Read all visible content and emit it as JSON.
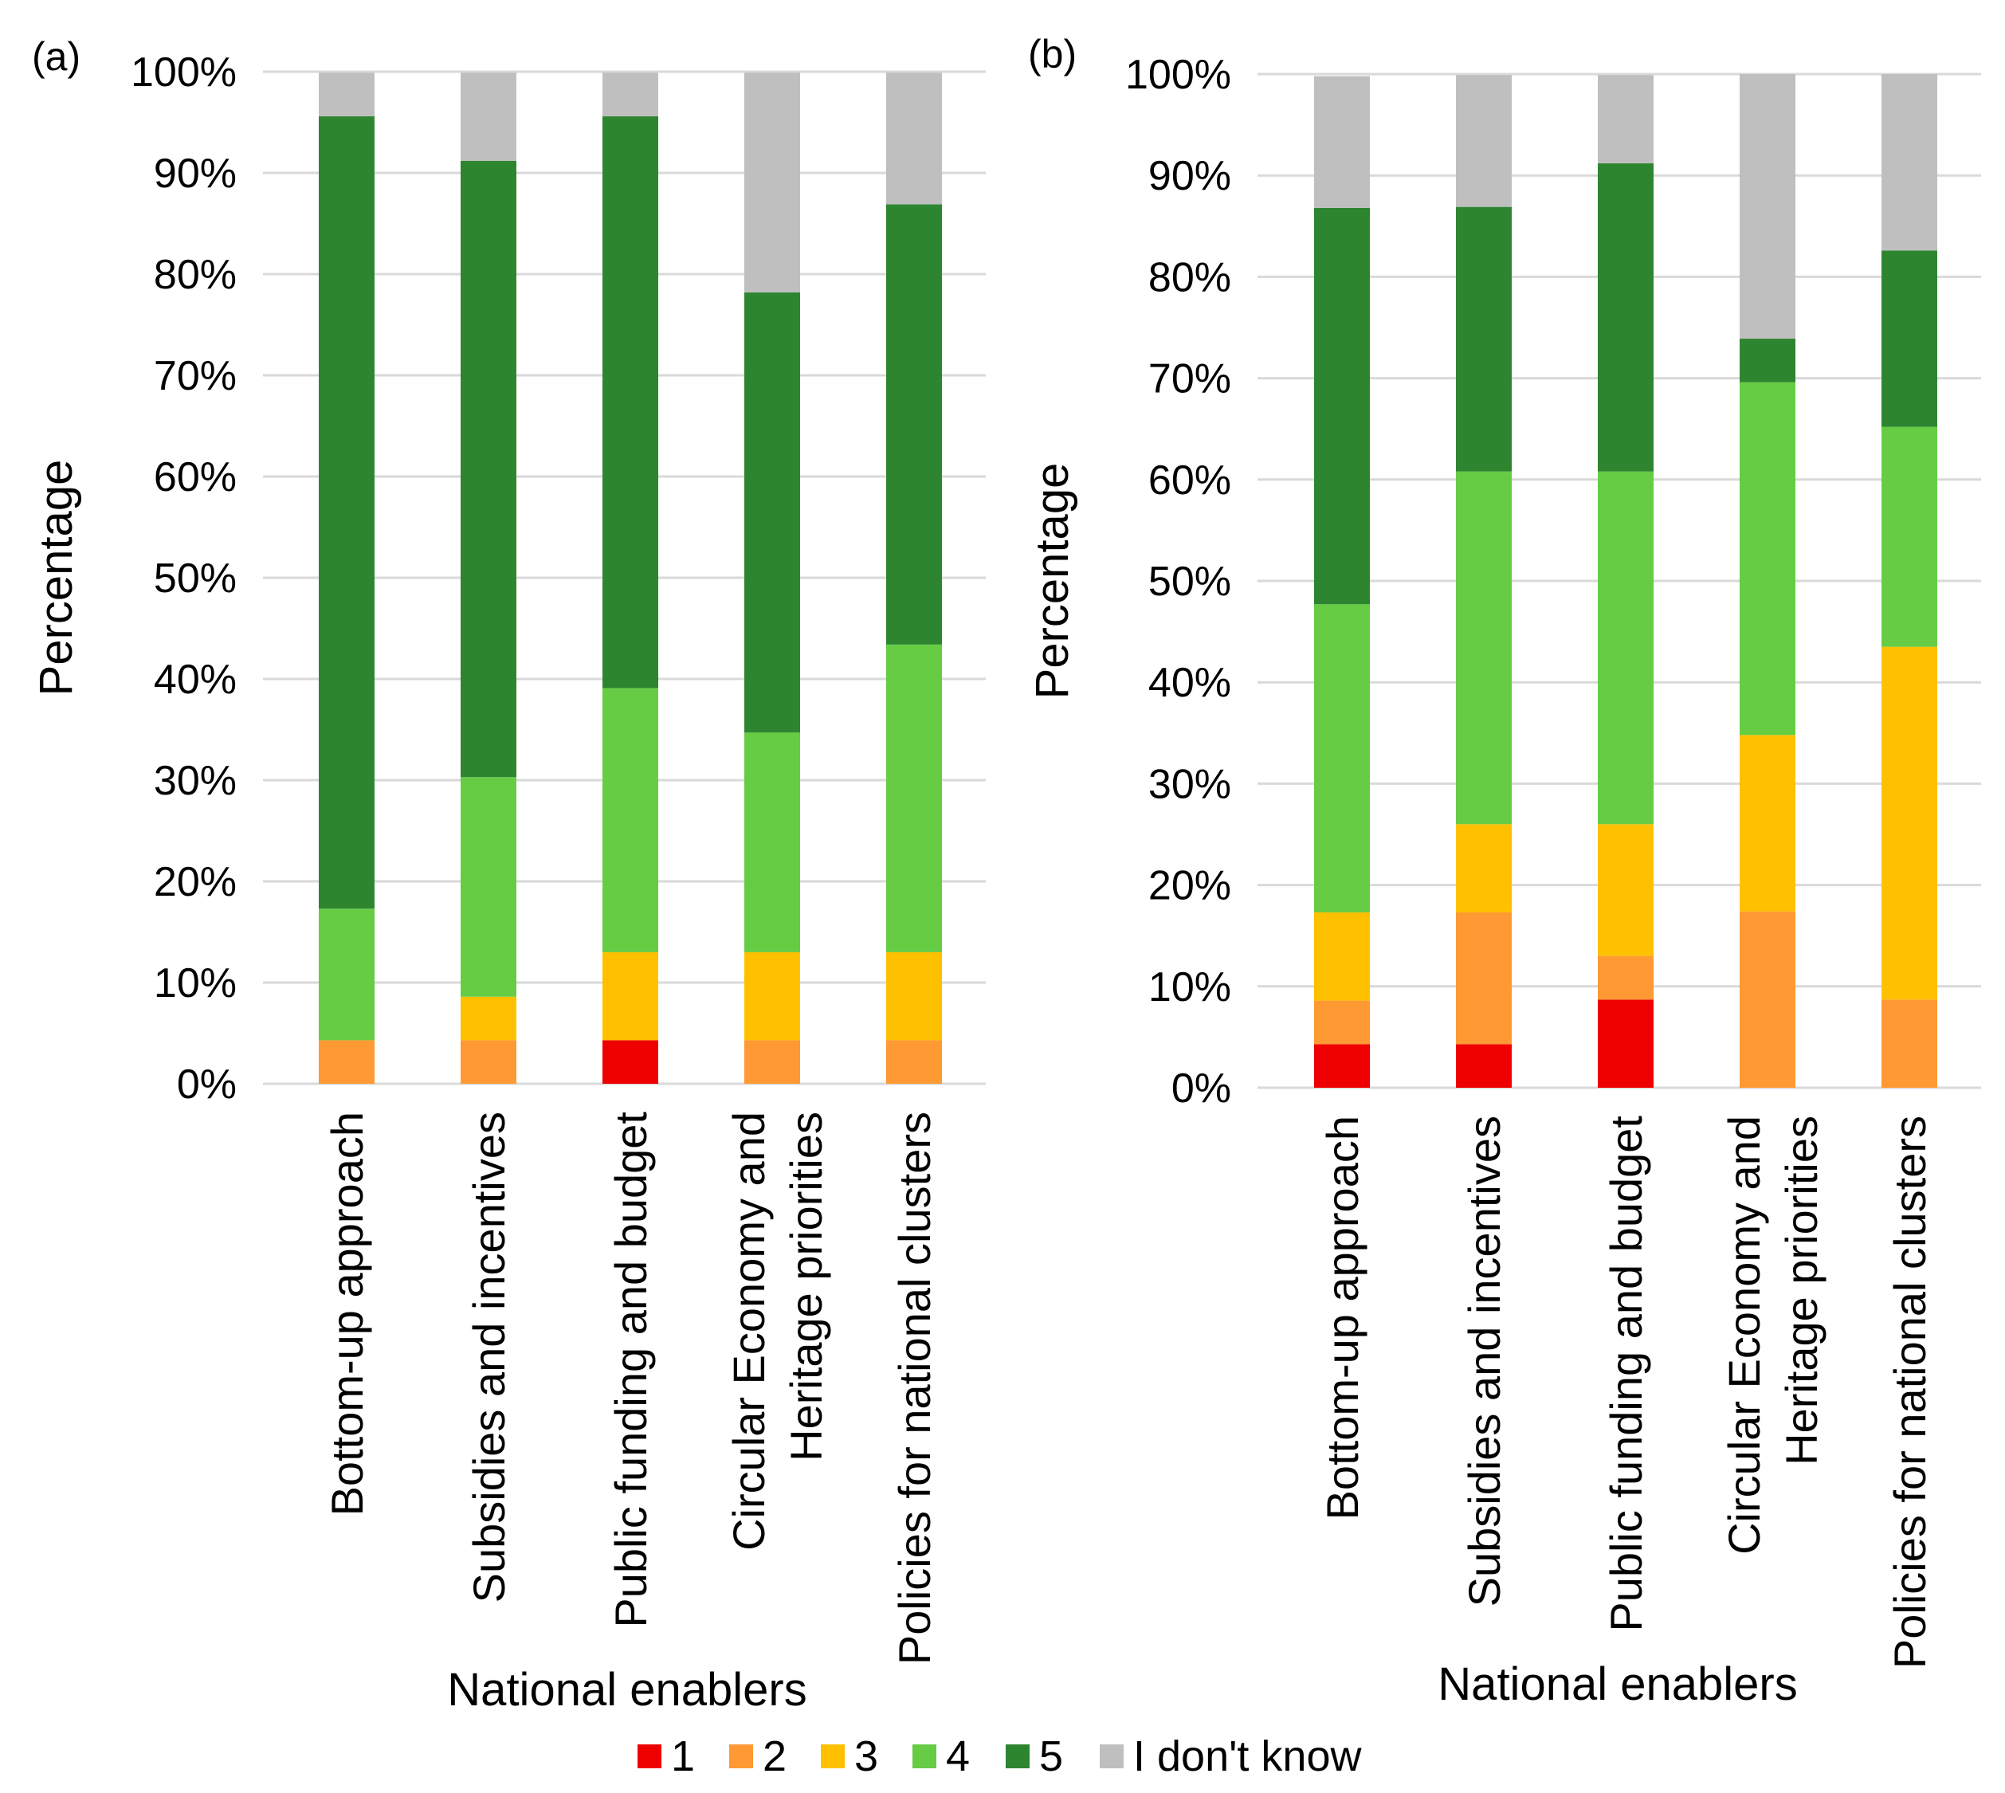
{
  "colors": {
    "1": "#ee0000",
    "2": "#ff9933",
    "3": "#ffc000",
    "4": "#66cc44",
    "5": "#2e8530",
    "I don't know": "#bfbfbf",
    "gridline": "#d9d9d9"
  },
  "legend": {
    "items": [
      "1",
      "2",
      "3",
      "4",
      "5",
      "I don't know"
    ]
  },
  "chart_data": [
    {
      "type": "bar",
      "stacked": true,
      "panel_label": "(a)",
      "xlabel": "National enablers",
      "ylabel": "Percentage",
      "ylim": [
        0,
        100
      ],
      "yticks": [
        "0%",
        "10%",
        "20%",
        "30%",
        "40%",
        "50%",
        "60%",
        "70%",
        "80%",
        "90%",
        "100%"
      ],
      "grid": true,
      "categories": [
        [
          "Bottom-up approach"
        ],
        [
          "Subsidies and incentives"
        ],
        [
          "Public funding and budget"
        ],
        [
          "Circular Economy and",
          "Heritage priorities"
        ],
        [
          "Policies for national clusters"
        ]
      ],
      "series": [
        {
          "name": "1",
          "values": [
            0,
            0,
            4.3,
            0,
            0
          ]
        },
        {
          "name": "2",
          "values": [
            4.3,
            4.3,
            0,
            4.3,
            4.3
          ]
        },
        {
          "name": "3",
          "values": [
            0,
            4.3,
            8.7,
            8.7,
            8.7
          ]
        },
        {
          "name": "4",
          "values": [
            13.0,
            21.7,
            26.1,
            21.7,
            30.4
          ]
        },
        {
          "name": "5",
          "values": [
            78.3,
            60.9,
            56.5,
            43.5,
            43.5
          ]
        },
        {
          "name": "I don't know",
          "values": [
            4.3,
            8.7,
            4.3,
            21.7,
            13.0
          ]
        }
      ]
    },
    {
      "type": "bar",
      "stacked": true,
      "panel_label": "(b)",
      "xlabel": "National enablers",
      "ylabel": "Percentage",
      "ylim": [
        0,
        100
      ],
      "yticks": [
        "0%",
        "10%",
        "20%",
        "30%",
        "40%",
        "50%",
        "60%",
        "70%",
        "80%",
        "90%",
        "100%"
      ],
      "grid": true,
      "categories": [
        [
          "Bottom-up approach"
        ],
        [
          "Subsidies and incentives"
        ],
        [
          "Public funding and budget"
        ],
        [
          "Circular Economy and",
          "Heritage priorities"
        ],
        [
          "Policies for national clusters"
        ]
      ],
      "series": [
        {
          "name": "1",
          "values": [
            4.3,
            4.3,
            8.7,
            0,
            0
          ]
        },
        {
          "name": "2",
          "values": [
            4.3,
            13.0,
            4.3,
            17.4,
            8.7
          ]
        },
        {
          "name": "3",
          "values": [
            8.7,
            8.7,
            13.0,
            17.4,
            34.8
          ]
        },
        {
          "name": "4",
          "values": [
            30.4,
            34.8,
            34.8,
            34.8,
            21.7
          ]
        },
        {
          "name": "5",
          "values": [
            39.1,
            26.1,
            30.4,
            4.3,
            17.4
          ]
        },
        {
          "name": "I don't know",
          "values": [
            13.0,
            13.0,
            8.7,
            26.1,
            17.4
          ]
        }
      ]
    }
  ]
}
